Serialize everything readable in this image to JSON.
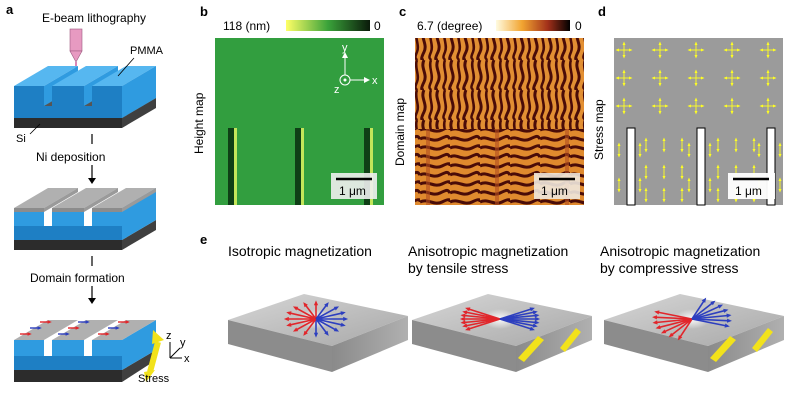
{
  "panel_letters": {
    "a": "a",
    "b": "b",
    "c": "c",
    "d": "d",
    "e": "e"
  },
  "panel_a": {
    "step1": "E-beam lithography",
    "pmma": "PMMA",
    "si": "Si",
    "step2": "Ni deposition",
    "step3": "Domain formation",
    "stress": "Stress",
    "axis_z": "z",
    "axis_y": "y",
    "axis_x": "x"
  },
  "panel_b": {
    "side_label": "Height map",
    "scale_max": "118 (nm)",
    "scale_min": "0",
    "scalebar": "1 μm",
    "axis_y": "y",
    "axis_z": "z",
    "axis_x": "x"
  },
  "panel_c": {
    "side_label": "Domain map",
    "scale_max": "6.7 (degree)",
    "scale_min": "0",
    "scalebar": "1 μm"
  },
  "panel_d": {
    "side_label": "Stress map",
    "scalebar": "1 μm"
  },
  "panel_e": {
    "col1": {
      "line1": "Isotropic magnetization",
      "line2": ""
    },
    "col2": {
      "line1": "Anisotropic magnetization",
      "line2": "by tensile stress"
    },
    "col3": {
      "line1": "Anisotropic magnetization",
      "line2": "by compressive stress"
    }
  },
  "colors": {
    "pmma_blue": "#2f9be0",
    "si_dark": "#3c3c3c",
    "ni_gray": "#a9a9a9",
    "height_green": "#2f9a3c",
    "domain_orange": "#d7701f",
    "stress_arrow": "#ffff22",
    "mag_red": "#e1262b",
    "mag_blue": "#2d3fbf"
  }
}
